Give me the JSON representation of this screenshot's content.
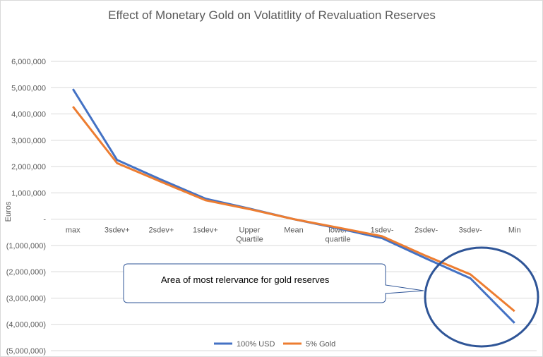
{
  "chart_data": {
    "type": "line",
    "title": "Effect of Monetary Gold on Volatitlity of Revaluation Reserves",
    "xlabel": "",
    "ylabel": "Euros",
    "categories": [
      "max",
      "3sdev+",
      "2sdev+",
      "1sdev+",
      "Upper Quartile",
      "Mean",
      "lower quartile",
      "1sdev-",
      "2sdev-",
      "3sdev-",
      "Min"
    ],
    "ylim": [
      -5000000,
      6000000
    ],
    "yticks": [
      6000000,
      5000000,
      4000000,
      3000000,
      2000000,
      1000000,
      0,
      -1000000,
      -2000000,
      -3000000,
      -4000000,
      -5000000
    ],
    "ytick_labels": [
      "6,000,000",
      "5,000,000",
      "4,000,000",
      "3,000,000",
      "2,000,000",
      "1,000,000",
      "-",
      "(1,000,000)",
      "(2,000,000)",
      "(3,000,000)",
      "(4,000,000)",
      "(5,000,000)"
    ],
    "grid": true,
    "legend_position": "bottom",
    "series": [
      {
        "name": "100% USD",
        "color": "#4472C4",
        "values": [
          4950000,
          2250000,
          1500000,
          780000,
          400000,
          0,
          -350000,
          -720000,
          -1500000,
          -2250000,
          -3950000
        ]
      },
      {
        "name": "5% Gold",
        "color": "#ED7D31",
        "values": [
          4280000,
          2130000,
          1420000,
          720000,
          380000,
          0,
          -320000,
          -650000,
          -1400000,
          -2100000,
          -3500000
        ]
      }
    ],
    "annotations": [
      {
        "text": "Area of most relervance for gold reserves",
        "shape": "callout"
      }
    ]
  }
}
